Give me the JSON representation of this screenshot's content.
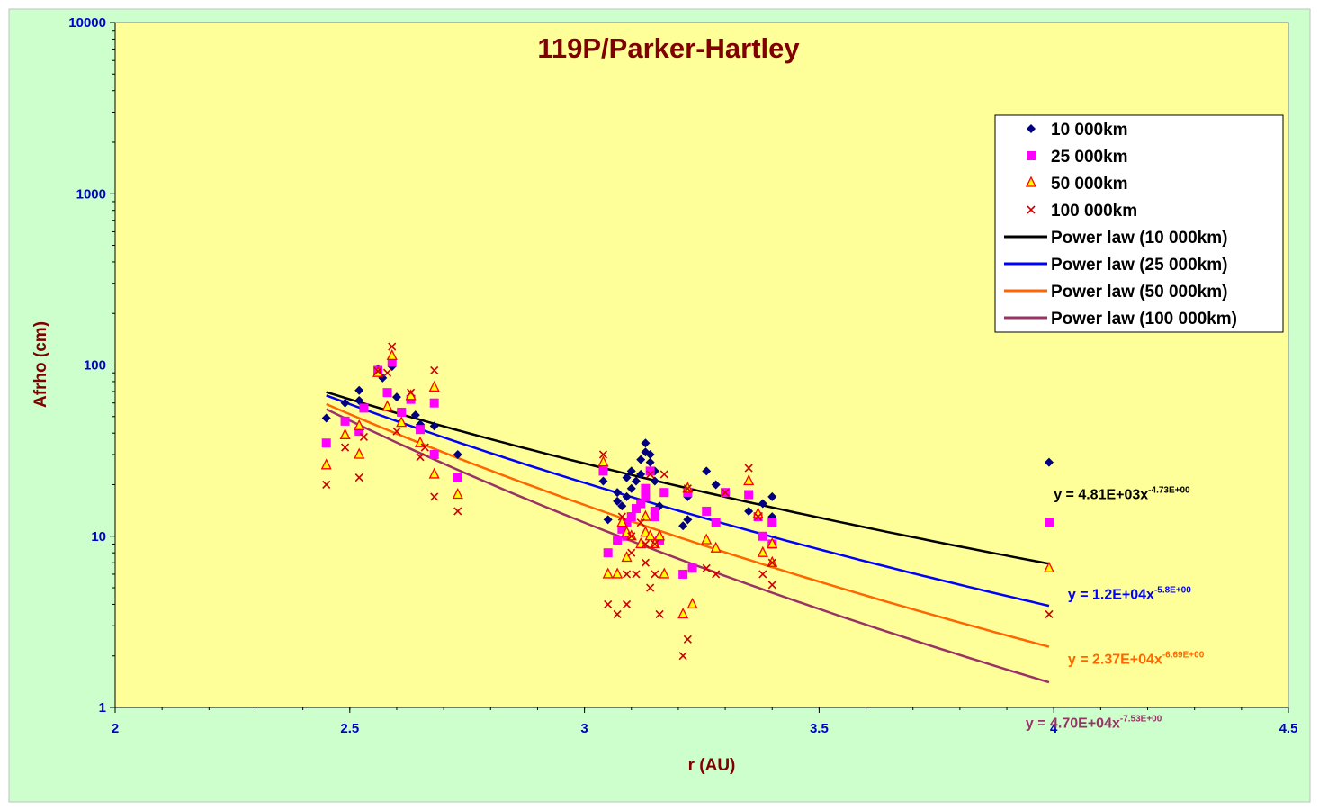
{
  "chart_data": {
    "type": "scatter",
    "title": "119P/Parker-Hartley",
    "xlabel": "r (AU)",
    "ylabel": "Afrho (cm)",
    "xlim": [
      2,
      4.5
    ],
    "ylim": [
      1,
      10000
    ],
    "yscale": "log",
    "x_ticks": [
      "2",
      "2.5",
      "3",
      "3.5",
      "4",
      "4.5"
    ],
    "y_ticks": [
      "1",
      "10",
      "100",
      "1000",
      "10000"
    ],
    "grid": false,
    "legend_position": "top-right",
    "colors": {
      "page_background": "#ccffcc",
      "plot_background": "#ffff99",
      "title": "#800000",
      "axis_labels": "#800000",
      "tick_labels": "#0000cc"
    },
    "series": [
      {
        "name": "10 000km",
        "marker": "diamond",
        "color": "#000080",
        "points": [
          [
            2.45,
            49
          ],
          [
            2.49,
            60
          ],
          [
            2.52,
            62
          ],
          [
            2.52,
            71
          ],
          [
            2.56,
            95
          ],
          [
            2.57,
            84
          ],
          [
            2.59,
            98
          ],
          [
            2.6,
            65
          ],
          [
            2.64,
            51
          ],
          [
            2.65,
            45
          ],
          [
            2.68,
            44
          ],
          [
            2.73,
            30
          ],
          [
            3.04,
            21
          ],
          [
            3.05,
            12.5
          ],
          [
            3.07,
            16
          ],
          [
            3.07,
            18
          ],
          [
            3.08,
            15
          ],
          [
            3.09,
            17
          ],
          [
            3.09,
            22
          ],
          [
            3.1,
            19
          ],
          [
            3.1,
            24
          ],
          [
            3.11,
            21
          ],
          [
            3.12,
            28
          ],
          [
            3.12,
            23
          ],
          [
            3.13,
            31
          ],
          [
            3.13,
            35
          ],
          [
            3.14,
            27
          ],
          [
            3.14,
            30
          ],
          [
            3.15,
            21
          ],
          [
            3.15,
            24
          ],
          [
            3.16,
            15
          ],
          [
            3.21,
            11.5
          ],
          [
            3.22,
            12.5
          ],
          [
            3.22,
            17
          ],
          [
            3.26,
            24
          ],
          [
            3.28,
            20
          ],
          [
            3.3,
            18
          ],
          [
            3.35,
            14
          ],
          [
            3.38,
            15.5
          ],
          [
            3.4,
            17
          ],
          [
            3.4,
            13
          ],
          [
            3.99,
            27
          ]
        ]
      },
      {
        "name": "25 000km",
        "marker": "square",
        "color": "#ff00ff",
        "points": [
          [
            2.45,
            35
          ],
          [
            2.49,
            47
          ],
          [
            2.52,
            41
          ],
          [
            2.53,
            56
          ],
          [
            2.56,
            93
          ],
          [
            2.58,
            69
          ],
          [
            2.59,
            104
          ],
          [
            2.61,
            53
          ],
          [
            2.63,
            63
          ],
          [
            2.65,
            42
          ],
          [
            2.68,
            30
          ],
          [
            2.68,
            60
          ],
          [
            2.73,
            22
          ],
          [
            3.04,
            24
          ],
          [
            3.05,
            8
          ],
          [
            3.07,
            9.5
          ],
          [
            3.08,
            11
          ],
          [
            3.09,
            12
          ],
          [
            3.09,
            10
          ],
          [
            3.1,
            13
          ],
          [
            3.11,
            14.5
          ],
          [
            3.12,
            15.5
          ],
          [
            3.13,
            19
          ],
          [
            3.13,
            17
          ],
          [
            3.14,
            24
          ],
          [
            3.15,
            13
          ],
          [
            3.15,
            14
          ],
          [
            3.16,
            9.5
          ],
          [
            3.17,
            18
          ],
          [
            3.21,
            6
          ],
          [
            3.23,
            6.5
          ],
          [
            3.22,
            18
          ],
          [
            3.26,
            14
          ],
          [
            3.28,
            12
          ],
          [
            3.3,
            18
          ],
          [
            3.35,
            17.5
          ],
          [
            3.37,
            13
          ],
          [
            3.38,
            10
          ],
          [
            3.4,
            12
          ],
          [
            3.4,
            9
          ],
          [
            3.99,
            12
          ]
        ]
      },
      {
        "name": "50 000km",
        "marker": "triangle",
        "color": "#ff0000",
        "points": [
          [
            2.45,
            26
          ],
          [
            2.49,
            39
          ],
          [
            2.52,
            30
          ],
          [
            2.52,
            44
          ],
          [
            2.56,
            90
          ],
          [
            2.58,
            57
          ],
          [
            2.59,
            113
          ],
          [
            2.61,
            46
          ],
          [
            2.63,
            66
          ],
          [
            2.65,
            35
          ],
          [
            2.68,
            23
          ],
          [
            2.68,
            74
          ],
          [
            2.73,
            17.5
          ],
          [
            3.04,
            27
          ],
          [
            3.05,
            6
          ],
          [
            3.07,
            6
          ],
          [
            3.08,
            12
          ],
          [
            3.09,
            10.5
          ],
          [
            3.09,
            7.5
          ],
          [
            3.1,
            10
          ],
          [
            3.12,
            9
          ],
          [
            3.13,
            13
          ],
          [
            3.13,
            10.5
          ],
          [
            3.14,
            10
          ],
          [
            3.15,
            9
          ],
          [
            3.16,
            10
          ],
          [
            3.17,
            6
          ],
          [
            3.21,
            3.5
          ],
          [
            3.23,
            4
          ],
          [
            3.22,
            19
          ],
          [
            3.26,
            9.5
          ],
          [
            3.28,
            8.5
          ],
          [
            3.35,
            21
          ],
          [
            3.37,
            13.5
          ],
          [
            3.38,
            8
          ],
          [
            3.4,
            9
          ],
          [
            3.4,
            7
          ],
          [
            3.99,
            6.5
          ]
        ]
      },
      {
        "name": "100 000km",
        "marker": "x",
        "color": "#cc0000",
        "points": [
          [
            2.45,
            20
          ],
          [
            2.49,
            33
          ],
          [
            2.52,
            22
          ],
          [
            2.53,
            38
          ],
          [
            2.56,
            92
          ],
          [
            2.58,
            90
          ],
          [
            2.59,
            128
          ],
          [
            2.6,
            41
          ],
          [
            2.63,
            69
          ],
          [
            2.65,
            29
          ],
          [
            2.66,
            33
          ],
          [
            2.68,
            17
          ],
          [
            2.68,
            93
          ],
          [
            2.73,
            14
          ],
          [
            3.04,
            30
          ],
          [
            3.05,
            4
          ],
          [
            3.07,
            3.5
          ],
          [
            3.08,
            13
          ],
          [
            3.09,
            4
          ],
          [
            3.09,
            6
          ],
          [
            3.1,
            8
          ],
          [
            3.1,
            10
          ],
          [
            3.11,
            6
          ],
          [
            3.12,
            12
          ],
          [
            3.13,
            7
          ],
          [
            3.13,
            9
          ],
          [
            3.14,
            5
          ],
          [
            3.14,
            23
          ],
          [
            3.15,
            6
          ],
          [
            3.15,
            9
          ],
          [
            3.16,
            3.5
          ],
          [
            3.17,
            23
          ],
          [
            3.21,
            2
          ],
          [
            3.22,
            2.5
          ],
          [
            3.22,
            19
          ],
          [
            3.26,
            6.5
          ],
          [
            3.28,
            6
          ],
          [
            3.3,
            18
          ],
          [
            3.35,
            25
          ],
          [
            3.37,
            13
          ],
          [
            3.38,
            6
          ],
          [
            3.4,
            7
          ],
          [
            3.4,
            5.2
          ],
          [
            3.99,
            3.5
          ]
        ]
      }
    ],
    "fits": [
      {
        "name": "Power law (10 000km)",
        "a": 4810,
        "b": -4.73,
        "color": "#000000",
        "eq_base": "y = 4.81E+03x",
        "eq_exp": "-4.73E+00",
        "eq_x": 4.0,
        "eq_y": 16.5
      },
      {
        "name": "Power law (25 000km)",
        "a": 12000,
        "b": -5.8,
        "color": "#0000ff",
        "eq_base": "y = 1.2E+04x",
        "eq_exp": "-5.8E+00",
        "eq_x": 4.03,
        "eq_y": 4.3
      },
      {
        "name": "Power law (50 000km)",
        "a": 23700,
        "b": -6.69,
        "color": "#ff6600",
        "eq_base": "y = 2.37E+04x",
        "eq_exp": "-6.69E+00",
        "eq_x": 4.03,
        "eq_y": 1.8
      },
      {
        "name": "Power law (100 000km)",
        "a": 47000,
        "b": -7.53,
        "color": "#993366",
        "eq_base": "y = 4.70E+04x",
        "eq_exp": "-7.53E+00",
        "eq_x": 3.94,
        "eq_y": 0.76
      }
    ],
    "fit_range": [
      2.45,
      3.99
    ]
  }
}
